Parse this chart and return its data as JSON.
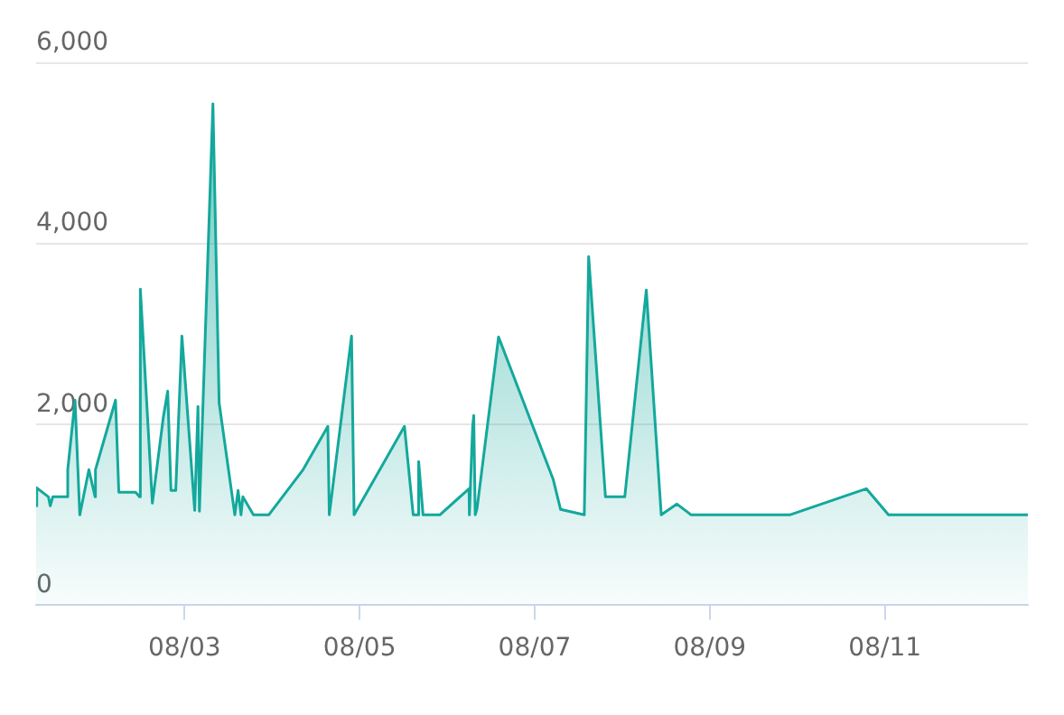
{
  "chart_data": {
    "type": "area",
    "x": [
      "--08-01T07:20",
      "--08-01T07:30",
      "--08-01T10:42",
      "--08-01T11:12",
      "--08-01T11:54",
      "--08-01T15:48",
      "--08-01T16:00",
      "--08-01T18:00",
      "--08-01T19:18",
      "--08-01T21:48",
      "--08-01T23:30",
      "--08-01T23:36",
      "--08-02T05:06",
      "--08-02T06:00",
      "--08-02T10:36",
      "--08-02T11:42",
      "--08-02T11:54",
      "--08-02T15:12",
      "--08-02T18:12",
      "--08-02T19:24",
      "--08-02T20:18",
      "--08-02T21:36",
      "--08-02T23:18",
      "--08-03T02:48",
      "--08-03T03:42",
      "--08-03T04:06",
      "--08-03T07:48",
      "--08-03T09:30",
      "--08-03T13:48",
      "--08-03T14:42",
      "--08-03T15:30",
      "--08-03T16:00",
      "--08-03T18:54",
      "--08-03T23:06",
      "--08-04T08:30",
      "--08-04T15:18",
      "--08-04T15:42",
      "--08-04T21:48",
      "--08-04T22:30",
      "--08-05T12:18",
      "--08-05T14:42",
      "--08-05T16:00",
      "--08-05T16:12",
      "--08-05T17:24",
      "--08-05T22:00",
      "--08-06T06:00",
      "--08-06T06:06",
      "--08-06T07:00",
      "--08-06T07:18",
      "--08-06T07:42",
      "--08-06T08:12",
      "--08-06T14:06",
      "--08-07T05:06",
      "--08-07T07:06",
      "--08-07T13:36",
      "--08-07T14:48",
      "--08-07T19:24",
      "--08-08T00:42",
      "--08-08T06:36",
      "--08-08T10:42",
      "--08-08T15:00",
      "--08-08T18:54",
      "--08-09T21:54",
      "--08-10T18:54",
      "--08-11T01:00",
      "--08-12T15:12"
    ],
    "series": [
      {
        "color": "#14a89c",
        "values": [
          1100,
          1300,
          1200,
          1100,
          1200,
          1200,
          1500,
          2270,
          1000,
          1500,
          1200,
          1500,
          2270,
          1250,
          1250,
          1200,
          3500,
          1130,
          2080,
          2370,
          1270,
          1270,
          2980,
          1050,
          2200,
          1040,
          5550,
          2240,
          1000,
          1270,
          1000,
          1200,
          1000,
          1000,
          1500,
          1980,
          1000,
          2980,
          1000,
          1980,
          1000,
          1000,
          1590,
          1000,
          1000,
          1290,
          1000,
          1980,
          2100,
          1000,
          1070,
          2970,
          1390,
          1060,
          1000,
          3860,
          1200,
          1200,
          3490,
          1000,
          1120,
          1000,
          1000,
          1290,
          1000,
          1000
        ]
      }
    ],
    "xlim": [
      "--08-01T07:20",
      "--08-12T15:12"
    ],
    "xticks": [
      {
        "value": "--08-03",
        "label": "08/03"
      },
      {
        "value": "--08-05",
        "label": "08/05"
      },
      {
        "value": "--08-07",
        "label": "08/07"
      },
      {
        "value": "--08-09",
        "label": "08/09"
      },
      {
        "value": "--08-11",
        "label": "08/11"
      }
    ],
    "ylim": [
      0,
      6000
    ],
    "yticks": [
      0,
      {
        "value": 2000,
        "label": "2,000"
      },
      {
        "value": 4000,
        "label": "4,000"
      },
      {
        "value": 6000,
        "label": "6,000"
      }
    ],
    "grid": "y",
    "legend": false,
    "marker": "none",
    "line_style": "solid"
  }
}
